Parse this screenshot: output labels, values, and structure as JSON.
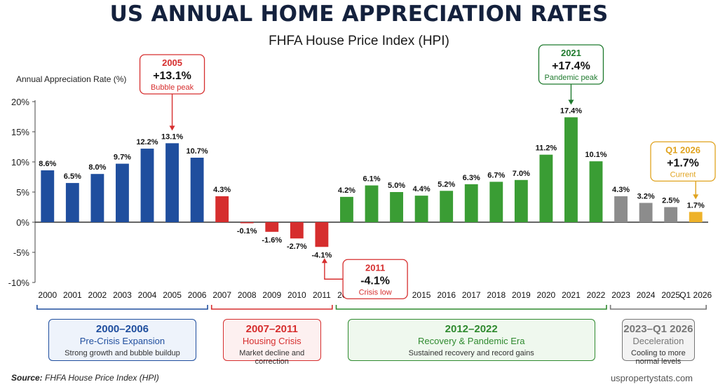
{
  "title": "US ANNUAL HOME APPRECIATION RATES",
  "subtitle": "FHFA House Price Index (HPI)",
  "source_label": "Source:",
  "source_text": "FHFA House Price Index (HPI)",
  "website": "uspropertystats.com",
  "colors": {
    "pre_crisis": "#1f4e9e",
    "crisis": "#d62e2e",
    "recovery": "#3a9d34",
    "deceleration": "#8c8c8c",
    "current": "#eeb22a"
  },
  "chart_data": {
    "type": "bar",
    "title": "US ANNUAL HOME APPRECIATION RATES",
    "subtitle": "FHFA House Price Index (HPI)",
    "xlabel": "",
    "ylabel": "Annual Appreciation Rate (%)",
    "ylim": [
      -10,
      20
    ],
    "yticks": [
      -10,
      -5,
      0,
      5,
      10,
      15,
      20
    ],
    "ytick_labels": [
      "-10%",
      "-5%",
      "0%",
      "5%",
      "10%",
      "15%",
      "20%"
    ],
    "categories": [
      "2000",
      "2001",
      "2002",
      "2003",
      "2004",
      "2005",
      "2006",
      "2007",
      "2008",
      "2009",
      "2010",
      "2011",
      "2012",
      "2013",
      "2014",
      "2015",
      "2016",
      "2017",
      "2018",
      "2019",
      "2020",
      "2021",
      "2022",
      "2023",
      "2024",
      "2025",
      "Q1 2026"
    ],
    "values": [
      8.6,
      6.5,
      8.0,
      9.7,
      12.2,
      13.1,
      10.7,
      4.3,
      -0.1,
      -1.6,
      -2.7,
      -4.1,
      4.2,
      6.1,
      5.0,
      4.4,
      5.2,
      6.3,
      6.7,
      7.0,
      11.2,
      17.4,
      10.1,
      4.3,
      3.2,
      2.5,
      1.7
    ],
    "value_labels": [
      "8.6%",
      "6.5%",
      "8.0%",
      "9.7%",
      "12.2%",
      "13.1%",
      "10.7%",
      "4.3%",
      "-0.1%",
      "-1.6%",
      "-2.7%",
      "-4.1%",
      "4.2%",
      "6.1%",
      "5.0%",
      "4.4%",
      "5.2%",
      "6.3%",
      "6.7%",
      "7.0%",
      "11.2%",
      "17.4%",
      "10.1%",
      "4.3%",
      "3.2%",
      "2.5%",
      "1.7%"
    ],
    "bar_groups": [
      "pre_crisis",
      "pre_crisis",
      "pre_crisis",
      "pre_crisis",
      "pre_crisis",
      "pre_crisis",
      "pre_crisis",
      "crisis",
      "crisis",
      "crisis",
      "crisis",
      "crisis",
      "recovery",
      "recovery",
      "recovery",
      "recovery",
      "recovery",
      "recovery",
      "recovery",
      "recovery",
      "recovery",
      "recovery",
      "recovery",
      "deceleration",
      "deceleration",
      "deceleration",
      "current"
    ],
    "grid": false,
    "annotations": [
      {
        "year": "2005",
        "value": "+13.1%",
        "note": "Bubble peak",
        "color": "#d62e2e",
        "index": 5,
        "position": "above"
      },
      {
        "year": "2021",
        "value": "+17.4%",
        "note": "Pandemic peak",
        "color": "#1f7a2e",
        "index": 21,
        "position": "above"
      },
      {
        "year": "Q1 2026",
        "value": "+1.7%",
        "note": "Current",
        "color": "#e0a31f",
        "index": 26,
        "position": "above"
      },
      {
        "year": "2011",
        "value": "-4.1%",
        "note": "Crisis low",
        "color": "#d62e2e",
        "index": 11,
        "position": "right"
      }
    ],
    "eras": [
      {
        "range": "2000–2006",
        "name": "Pre-Crisis Expansion",
        "desc": "Strong growth and bubble buildup",
        "color": "#1f4e9e",
        "bg": "#eef3fb",
        "from": 0,
        "to": 6
      },
      {
        "range": "2007–2011",
        "name": "Housing Crisis",
        "desc": "Market decline and correction",
        "color": "#d62e2e",
        "bg": "#fdf0f0",
        "from": 7,
        "to": 11
      },
      {
        "range": "2012–2022",
        "name": "Recovery & Pandemic Era",
        "desc": "Sustained recovery and record gains",
        "color": "#2f8a2f",
        "bg": "#eff8ee",
        "from": 12,
        "to": 22
      },
      {
        "range": "2023–Q1 2026",
        "name": "Deceleration",
        "desc": "Cooling to more normal levels",
        "color": "#777777",
        "bg": "#f3f3f3",
        "from": 23,
        "to": 26
      }
    ]
  }
}
